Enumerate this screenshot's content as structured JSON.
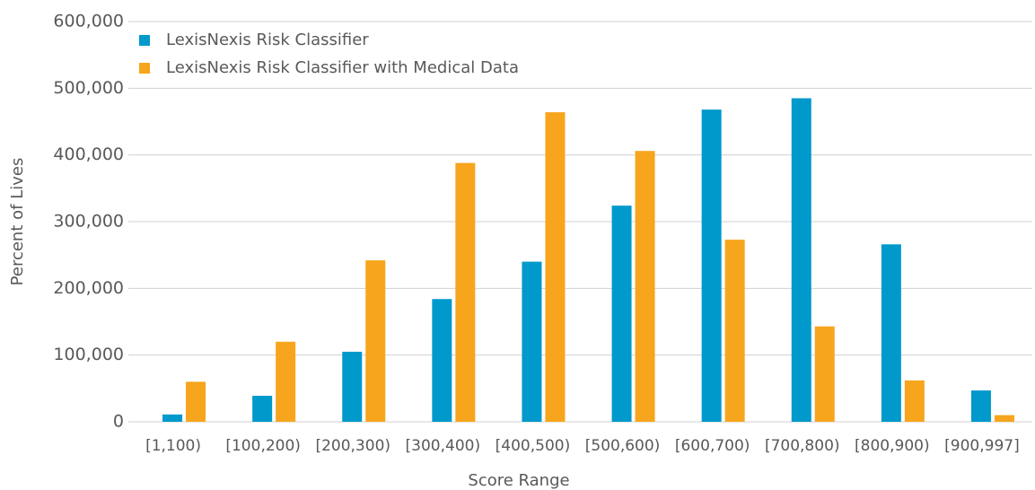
{
  "chart_data": {
    "type": "bar",
    "x_label": "Score Range",
    "y_label": "Percent of Lives",
    "categories": [
      "[1,100)",
      "[100,200)",
      "[200,300)",
      "[300,400)",
      "[400,500)",
      "[500,600)",
      "[600,700)",
      "[700,800)",
      "[800,900)",
      "[900,997]"
    ],
    "series": [
      {
        "name": "LexisNexis Risk Classifier",
        "color": "#0099cc",
        "values": [
          11000,
          39000,
          105000,
          184000,
          240000,
          324000,
          468000,
          485000,
          266000,
          47000
        ]
      },
      {
        "name": "LexisNexis Risk Classifier with Medical Data",
        "color": "#f7a51c",
        "values": [
          60000,
          120000,
          242000,
          388000,
          464000,
          406000,
          273000,
          143000,
          62000,
          10000
        ]
      }
    ],
    "ylim": [
      0,
      600000
    ],
    "yticks": [
      {
        "value": 0,
        "label": "0"
      },
      {
        "value": 100000,
        "label": "100,000"
      },
      {
        "value": 200000,
        "label": "200,000"
      },
      {
        "value": 300000,
        "label": "300,000"
      },
      {
        "value": 400000,
        "label": "400,000"
      },
      {
        "value": 500000,
        "label": "500,000"
      },
      {
        "value": 600000,
        "label": "600,000"
      }
    ],
    "grid": true,
    "legend": "top-left"
  }
}
